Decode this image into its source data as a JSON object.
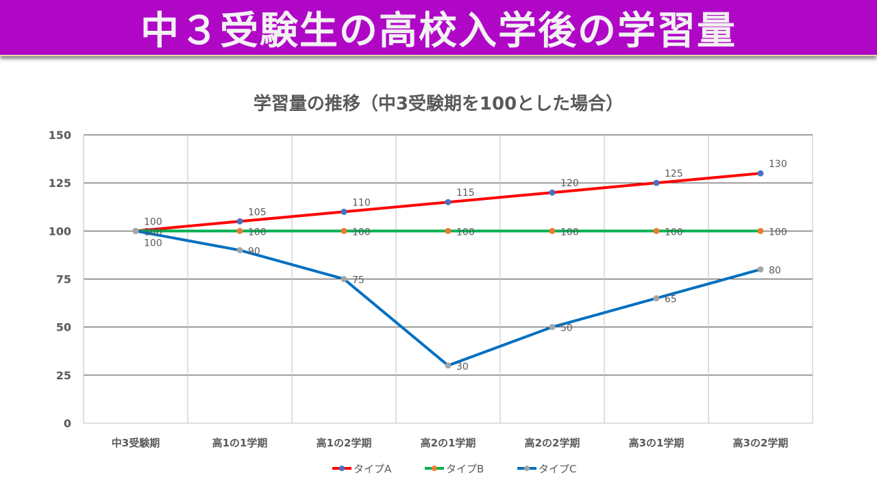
{
  "banner": {
    "title": "中３受験生の高校入学後の学習量",
    "color": "#b007c7"
  },
  "chart_data": {
    "type": "line",
    "title": "学習量の推移（中3受験期を100とした場合）",
    "categories": [
      "中3受験期",
      "高1の1学期",
      "高1の2学期",
      "高2の1学期",
      "高2の2学期",
      "高3の1学期",
      "高3の2学期"
    ],
    "ylim": [
      0,
      150
    ],
    "yticks": [
      0,
      25,
      50,
      75,
      100,
      125,
      150
    ],
    "grid": true,
    "legend": "bottom",
    "series": [
      {
        "name": "タイプA",
        "values": [
          100,
          105,
          110,
          115,
          120,
          125,
          130
        ],
        "line_color": "#ff0000",
        "marker_color": "#4472c4"
      },
      {
        "name": "タイプB",
        "values": [
          100,
          100,
          100,
          100,
          100,
          100,
          100
        ],
        "line_color": "#00b050",
        "marker_color": "#ed7d31"
      },
      {
        "name": "タイプC",
        "values": [
          100,
          90,
          75,
          30,
          50,
          65,
          80
        ],
        "line_color": "#0070c0",
        "marker_color": "#a5a5a5"
      }
    ]
  }
}
